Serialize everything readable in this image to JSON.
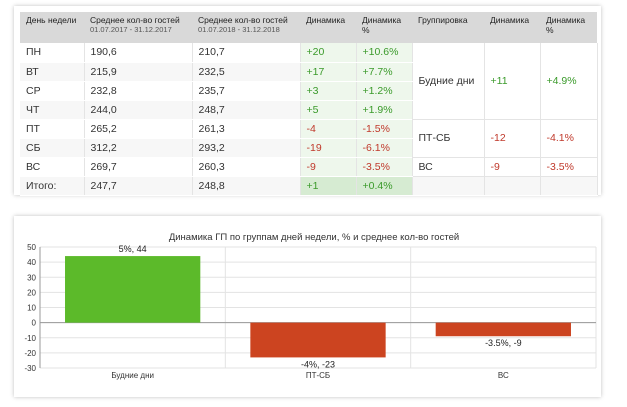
{
  "table": {
    "headers": {
      "day": "День недели",
      "avg1": "Среднее кол-во гостей",
      "avg1_period": "01.07.2017 - 31.12.2017",
      "avg2": "Среднее кол-во гостей",
      "avg2_period": "01.07.2018 - 31.12.2018",
      "dyn": "Динамика",
      "dynp": "Динамика %",
      "group": "Группировка",
      "gdyn": "Динамика",
      "gdynp": "Динамика %"
    },
    "rows": [
      {
        "day": "ПН",
        "avg1": "190,6",
        "avg2": "210,7",
        "dyn": "+20",
        "dynp": "+10.6%"
      },
      {
        "day": "ВТ",
        "avg1": "215,9",
        "avg2": "232,5",
        "dyn": "+17",
        "dynp": "+7.7%"
      },
      {
        "day": "СР",
        "avg1": "232,8",
        "avg2": "235,7",
        "dyn": "+3",
        "dynp": "+1.2%"
      },
      {
        "day": "ЧТ",
        "avg1": "244,0",
        "avg2": "248,7",
        "dyn": "+5",
        "dynp": "+1.9%"
      },
      {
        "day": "ПТ",
        "avg1": "265,2",
        "avg2": "261,3",
        "dyn": "-4",
        "dynp": "-1.5%"
      },
      {
        "day": "СБ",
        "avg1": "312,2",
        "avg2": "293,2",
        "dyn": "-19",
        "dynp": "-6.1%"
      },
      {
        "day": "ВС",
        "avg1": "269,7",
        "avg2": "260,3",
        "dyn": "-9",
        "dynp": "-3.5%"
      }
    ],
    "total": {
      "day": "Итого:",
      "avg1": "247,7",
      "avg2": "248,8",
      "dyn": "+1",
      "dynp": "+0.4%"
    },
    "groups": [
      {
        "name": "Будние дни",
        "dyn": "+11",
        "dynp": "+4.9%"
      },
      {
        "name": "ПТ-СБ",
        "dyn": "-12",
        "dynp": "-4.1%"
      },
      {
        "name": "ВС",
        "dyn": "-9",
        "dynp": "-3.5%"
      }
    ],
    "colors": {
      "positive": "#3a9a2a",
      "negative": "#c0392b"
    }
  },
  "chart_data": {
    "type": "bar",
    "title": "Динамика ГП по группам дней недели, % и среднее кол-во гостей",
    "categories": [
      "Будние дни",
      "ПТ-СБ",
      "ВС"
    ],
    "values": [
      44,
      -23,
      -9
    ],
    "data_labels": [
      "5%, 44",
      "-4%, -23",
      "-3.5%, -9"
    ],
    "colors": [
      "#5cba2a",
      "#cc4420",
      "#cc4420"
    ],
    "ylim": [
      -30,
      50
    ],
    "yticks": [
      50,
      40,
      30,
      20,
      10,
      0,
      -10,
      -20,
      -30
    ],
    "ytick_labels": [
      "50",
      "40",
      "30",
      "20",
      "10",
      "0",
      "-10",
      "-20",
      "-30"
    ],
    "grid": true
  }
}
